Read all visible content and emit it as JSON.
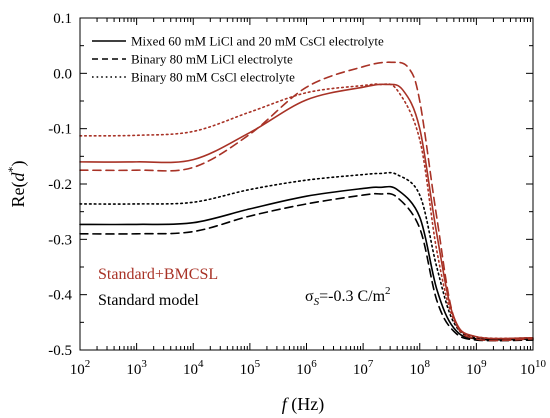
{
  "chart_data": {
    "type": "line",
    "xlabel_main": "f",
    "xlabel_unit": " (Hz)",
    "ylabel_main": "Re(",
    "ylabel_var": "d",
    "ylabel_sup": "*",
    "ylabel_close": ")",
    "xscale": "log",
    "xlim": [
      100,
      10000000000
    ],
    "ylim": [
      -0.5,
      0.1
    ],
    "x_ticks": [
      {
        "base": "10",
        "exp": "2"
      },
      {
        "base": "10",
        "exp": "3"
      },
      {
        "base": "10",
        "exp": "4"
      },
      {
        "base": "10",
        "exp": "5"
      },
      {
        "base": "10",
        "exp": "6"
      },
      {
        "base": "10",
        "exp": "7"
      },
      {
        "base": "10",
        "exp": "8"
      },
      {
        "base": "10",
        "exp": "9"
      },
      {
        "base": "10",
        "exp": "10"
      }
    ],
    "y_ticks": [
      "0.1",
      "0.0",
      "-0.1",
      "-0.2",
      "-0.3",
      "-0.4",
      "-0.5"
    ],
    "legend_position": "top-center",
    "legend": [
      {
        "label": "Mixed 60 mM LiCl and 20 mM CsCl electrolyte",
        "dash": "solid"
      },
      {
        "label": "Binary 80 mM LiCl electrolyte",
        "dash": "dashed"
      },
      {
        "label": "Binary 80 mM CsCl electrolyte",
        "dash": "dotted"
      }
    ],
    "model_labels": [
      {
        "text": "Standard+BMCSL",
        "color": "#a83226"
      },
      {
        "text": "Standard model",
        "color": "#000000"
      }
    ],
    "annotation": {
      "sigma": "σ",
      "sub": "S",
      "value": "=-0.3 C/m",
      "sup": "2"
    },
    "colors": {
      "standard": "#000000",
      "bmcsl": "#a83226"
    },
    "series": [
      {
        "model": "Standard model",
        "dash": "solid",
        "color": "#000000",
        "x_log10": [
          2,
          3,
          4,
          5,
          6,
          7,
          7.3,
          7.6,
          8,
          8.3,
          8.6,
          9,
          10
        ],
        "y": [
          -0.273,
          -0.273,
          -0.27,
          -0.245,
          -0.222,
          -0.208,
          -0.206,
          -0.21,
          -0.26,
          -0.39,
          -0.46,
          -0.48,
          -0.48
        ]
      },
      {
        "model": "Standard model",
        "dash": "dashed",
        "color": "#000000",
        "x_log10": [
          2,
          3,
          4,
          5,
          6,
          7,
          7.3,
          7.6,
          8,
          8.3,
          8.6,
          9,
          10
        ],
        "y": [
          -0.29,
          -0.29,
          -0.286,
          -0.258,
          -0.236,
          -0.22,
          -0.218,
          -0.224,
          -0.28,
          -0.41,
          -0.466,
          -0.482,
          -0.482
        ]
      },
      {
        "model": "Standard model",
        "dash": "dotted",
        "color": "#000000",
        "x_log10": [
          2,
          3,
          4,
          5,
          6,
          7,
          7.3,
          7.6,
          8,
          8.3,
          8.6,
          9,
          10
        ],
        "y": [
          -0.236,
          -0.236,
          -0.233,
          -0.21,
          -0.193,
          -0.183,
          -0.181,
          -0.183,
          -0.22,
          -0.35,
          -0.45,
          -0.478,
          -0.478
        ]
      },
      {
        "model": "Standard+BMCSL",
        "dash": "solid",
        "color": "#a83226",
        "x_log10": [
          2,
          3,
          4,
          5,
          6,
          7,
          7.4,
          7.7,
          8,
          8.3,
          8.6,
          9,
          10
        ],
        "y": [
          -0.16,
          -0.16,
          -0.156,
          -0.107,
          -0.048,
          -0.025,
          -0.02,
          -0.03,
          -0.1,
          -0.29,
          -0.44,
          -0.476,
          -0.478
        ]
      },
      {
        "model": "Standard+BMCSL",
        "dash": "dashed",
        "color": "#a83226",
        "x_log10": [
          2,
          3,
          4,
          5,
          6,
          7,
          7.5,
          7.8,
          8,
          8.3,
          8.6,
          9,
          10
        ],
        "y": [
          -0.175,
          -0.175,
          -0.17,
          -0.11,
          -0.025,
          0.012,
          0.02,
          0.01,
          -0.05,
          -0.26,
          -0.44,
          -0.48,
          -0.48
        ]
      },
      {
        "model": "Standard+BMCSL",
        "dash": "dotted",
        "color": "#a83226",
        "x_log10": [
          2,
          3,
          4,
          5,
          6,
          7,
          7.3,
          7.6,
          8,
          8.3,
          8.6,
          9,
          10
        ],
        "y": [
          -0.113,
          -0.112,
          -0.105,
          -0.07,
          -0.035,
          -0.022,
          -0.02,
          -0.03,
          -0.12,
          -0.32,
          -0.445,
          -0.476,
          -0.478
        ]
      }
    ]
  }
}
